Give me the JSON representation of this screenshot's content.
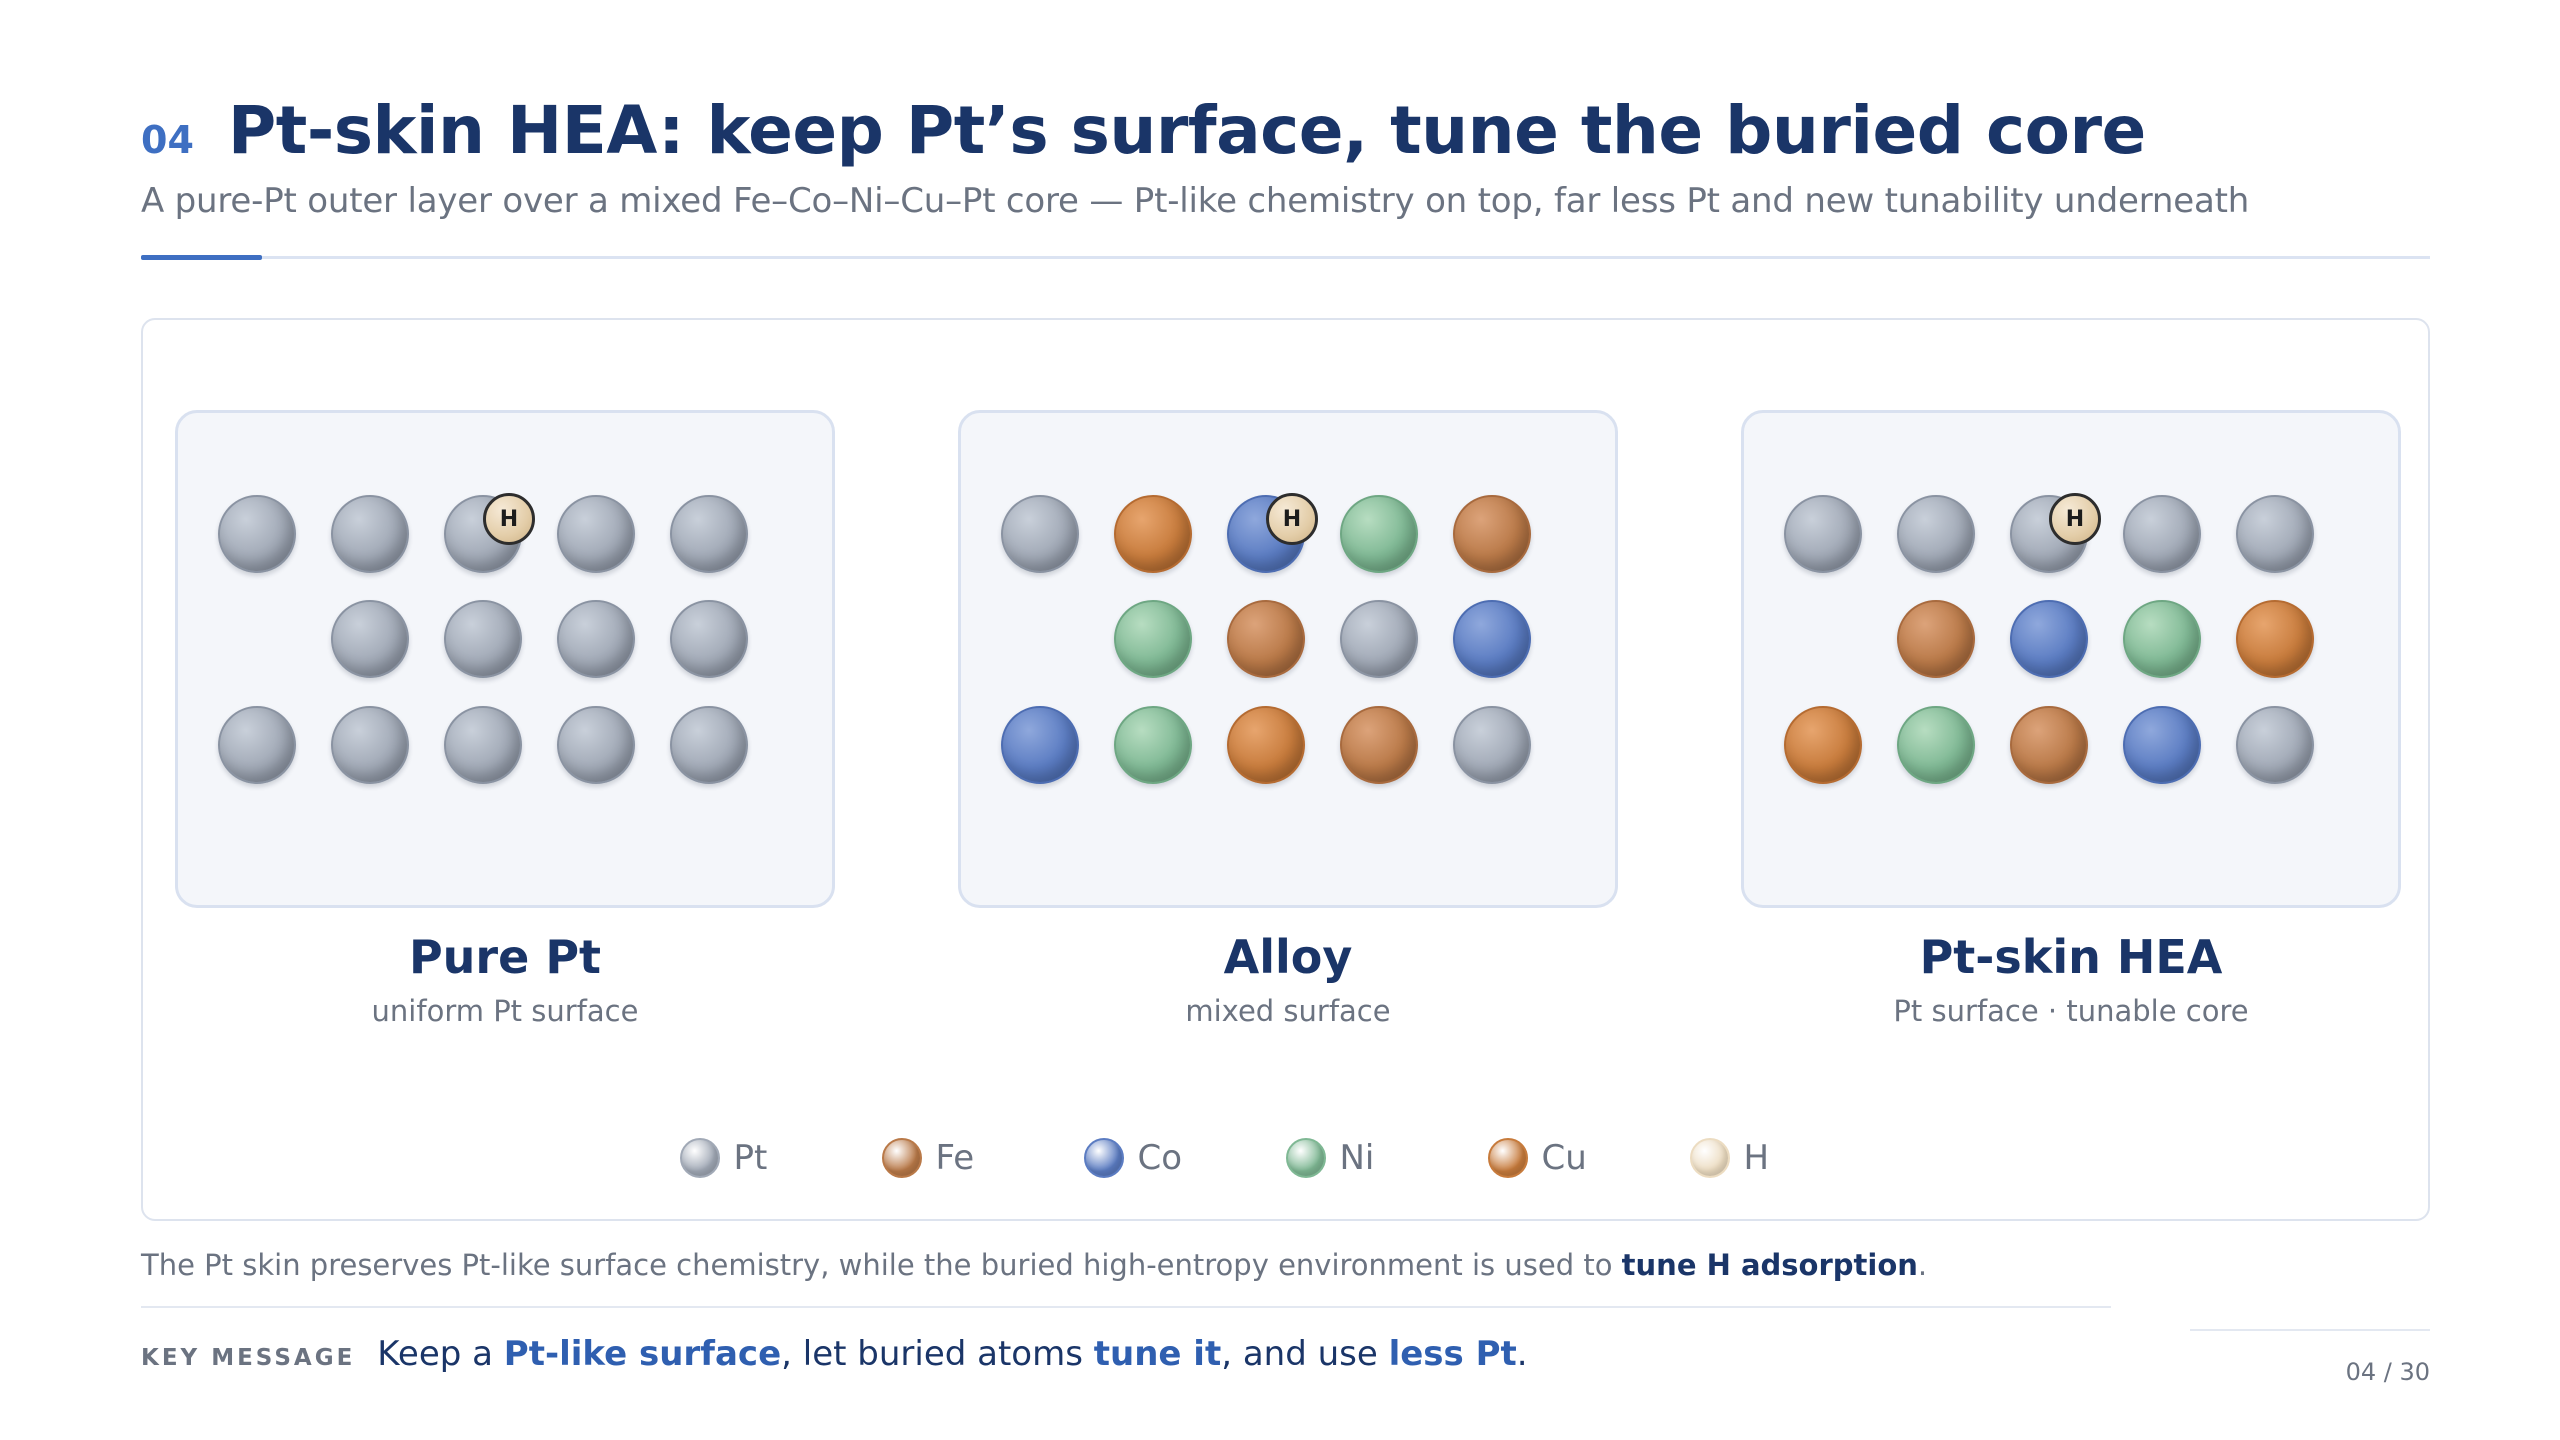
{
  "header": {
    "slide_number": "04",
    "title": "Pt-skin HEA: keep Pt’s surface, tune the buried core",
    "subtitle": "A pure-Pt outer layer over a mixed Fe–Co–Ni–Cu–Pt core — Pt-like chemistry on top, far less Pt and new tunability underneath"
  },
  "panels": [
    {
      "title": "Pure Pt",
      "subtitle": "uniform Pt surface",
      "adsorbate": "H",
      "rows": [
        [
          "Pt",
          "Pt",
          "Pt",
          "Pt",
          "Pt"
        ],
        [
          "Pt",
          "Pt",
          "Pt",
          "Pt"
        ],
        [
          "Pt",
          "Pt",
          "Pt",
          "Pt",
          "Pt"
        ]
      ]
    },
    {
      "title": "Alloy",
      "subtitle": "mixed surface",
      "adsorbate": "H",
      "rows": [
        [
          "Pt",
          "Cu",
          "Co",
          "Ni",
          "Fe"
        ],
        [
          "Ni",
          "Fe",
          "Pt",
          "Co"
        ],
        [
          "Co",
          "Ni",
          "Cu",
          "Fe",
          "Pt"
        ]
      ]
    },
    {
      "title": "Pt-skin HEA",
      "subtitle": "Pt surface · tunable core",
      "adsorbate": "H",
      "rows": [
        [
          "Pt",
          "Pt",
          "Pt",
          "Pt",
          "Pt"
        ],
        [
          "Fe",
          "Co",
          "Ni",
          "Cu"
        ],
        [
          "Cu",
          "Ni",
          "Fe",
          "Co",
          "Pt"
        ]
      ]
    }
  ],
  "legend": [
    {
      "label": "Pt",
      "color": "#a1a9b6"
    },
    {
      "label": "Fe",
      "color": "#b97948"
    },
    {
      "label": "Co",
      "color": "#5b7cc2"
    },
    {
      "label": "Ni",
      "color": "#7fb894"
    },
    {
      "label": "Cu",
      "color": "#c77b3c"
    },
    {
      "label": "H",
      "color": "#ecdcc1"
    }
  ],
  "caption": {
    "text": "The Pt skin preserves Pt-like surface chemistry, while the buried high-entropy environment is used to ",
    "emphasis": "tune H adsorption",
    "end": "."
  },
  "key_message": {
    "label": "KEY MESSAGE",
    "part1": "Keep a ",
    "em1": "Pt-like surface",
    "part2": ", let buried atoms ",
    "em2": "tune it",
    "part3": ", and use ",
    "em3": "less Pt",
    "part4": "."
  },
  "page_counter": "04 / 30",
  "colors": {
    "accent": "#3e6fc2",
    "title": "#1a3568",
    "muted": "#6b7381"
  }
}
